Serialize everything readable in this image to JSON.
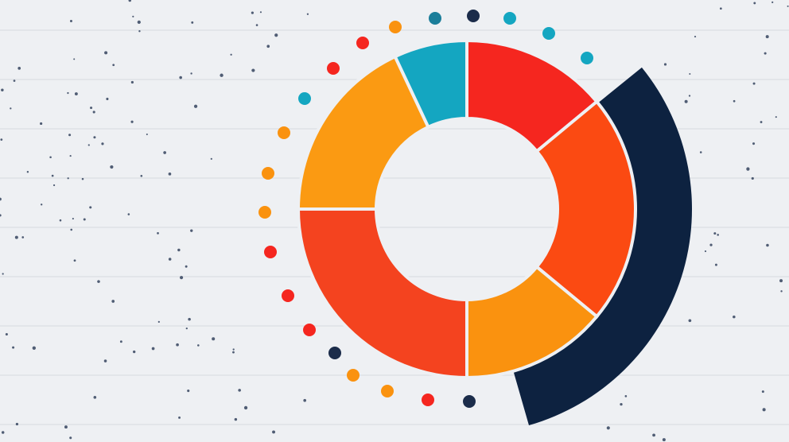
{
  "chart_data": {
    "type": "donut",
    "values": [
      14,
      22,
      14,
      25,
      18,
      7
    ],
    "colors": [
      "#f5261f",
      "#fb4a12",
      "#fa920f",
      "#f4431f",
      "#fb9a12",
      "#14a6c1"
    ]
  }
}
